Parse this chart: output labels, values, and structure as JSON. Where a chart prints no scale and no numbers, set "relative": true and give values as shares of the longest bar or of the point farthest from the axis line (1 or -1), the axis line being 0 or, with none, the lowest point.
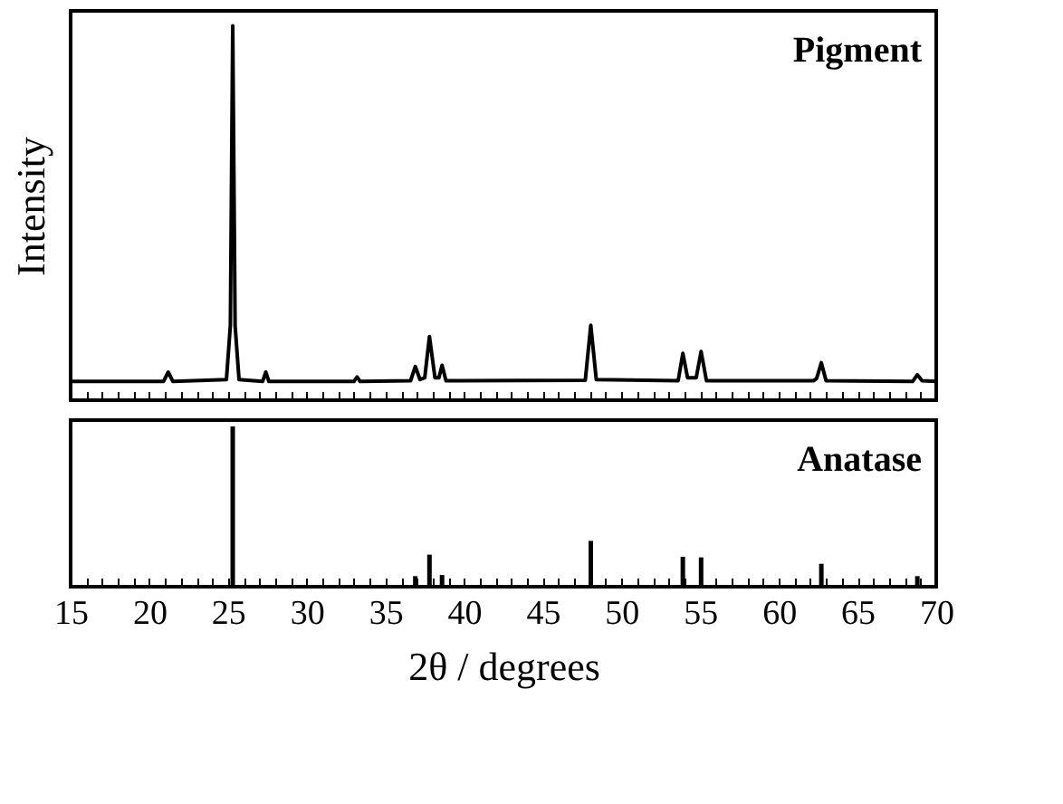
{
  "chart_data": [
    {
      "type": "line",
      "relative": true,
      "ylabel": "Intensity",
      "annotations": [
        "Pigment"
      ],
      "tick_labels": false,
      "grid": false,
      "marker": "none",
      "line_style": "solid",
      "xlim": [
        15,
        70
      ],
      "xticks": [
        {
          "value": 15,
          "label": null
        },
        {
          "value": 16,
          "label": null
        },
        {
          "value": 17,
          "label": null
        },
        {
          "value": 18,
          "label": null
        },
        {
          "value": 19,
          "label": null
        },
        {
          "value": 20,
          "label": null
        },
        {
          "value": 21,
          "label": null
        },
        {
          "value": 22,
          "label": null
        },
        {
          "value": 23,
          "label": null
        },
        {
          "value": 24,
          "label": null
        },
        {
          "value": 25,
          "label": null
        },
        {
          "value": 26,
          "label": null
        },
        {
          "value": 27,
          "label": null
        },
        {
          "value": 28,
          "label": null
        },
        {
          "value": 29,
          "label": null
        },
        {
          "value": 30,
          "label": null
        },
        {
          "value": 31,
          "label": null
        },
        {
          "value": 32,
          "label": null
        },
        {
          "value": 33,
          "label": null
        },
        {
          "value": 34,
          "label": null
        },
        {
          "value": 35,
          "label": null
        },
        {
          "value": 36,
          "label": null
        },
        {
          "value": 37,
          "label": null
        },
        {
          "value": 38,
          "label": null
        },
        {
          "value": 39,
          "label": null
        },
        {
          "value": 40,
          "label": null
        },
        {
          "value": 41,
          "label": null
        },
        {
          "value": 42,
          "label": null
        },
        {
          "value": 43,
          "label": null
        },
        {
          "value": 44,
          "label": null
        },
        {
          "value": 45,
          "label": null
        },
        {
          "value": 46,
          "label": null
        },
        {
          "value": 47,
          "label": null
        },
        {
          "value": 48,
          "label": null
        },
        {
          "value": 49,
          "label": null
        },
        {
          "value": 50,
          "label": null
        },
        {
          "value": 51,
          "label": null
        },
        {
          "value": 52,
          "label": null
        },
        {
          "value": 53,
          "label": null
        },
        {
          "value": 54,
          "label": null
        },
        {
          "value": 55,
          "label": null
        },
        {
          "value": 56,
          "label": null
        },
        {
          "value": 57,
          "label": null
        },
        {
          "value": 58,
          "label": null
        },
        {
          "value": 59,
          "label": null
        },
        {
          "value": 60,
          "label": null
        },
        {
          "value": 61,
          "label": null
        },
        {
          "value": 62,
          "label": null
        },
        {
          "value": 63,
          "label": null
        },
        {
          "value": 64,
          "label": null
        },
        {
          "value": 65,
          "label": null
        },
        {
          "value": 66,
          "label": null
        },
        {
          "value": 67,
          "label": null
        },
        {
          "value": 68,
          "label": null
        },
        {
          "value": 69,
          "label": null
        },
        {
          "value": 70,
          "label": null
        }
      ],
      "series": [
        {
          "color": "#000000",
          "x": [
            15,
            20.9,
            21.2,
            21.5,
            24.9,
            25.15,
            25.3,
            25.45,
            25.7,
            27.2,
            27.4,
            27.6,
            33.0,
            33.2,
            33.4,
            36.6,
            36.9,
            37.2,
            37.5,
            37.8,
            38.15,
            38.4,
            38.6,
            38.85,
            47.7,
            48.05,
            48.4,
            53.6,
            53.9,
            54.2,
            54.75,
            55.06,
            55.4,
            62.2,
            62.4,
            62.7,
            63.0,
            68.5,
            68.8,
            69.1,
            70
          ],
          "values": [
            0.05,
            0.05,
            0.075,
            0.05,
            0.055,
            0.2,
            1.0,
            0.2,
            0.055,
            0.05,
            0.075,
            0.05,
            0.05,
            0.062,
            0.05,
            0.052,
            0.09,
            0.055,
            0.06,
            0.17,
            0.06,
            0.06,
            0.093,
            0.052,
            0.053,
            0.2,
            0.055,
            0.052,
            0.125,
            0.06,
            0.06,
            0.13,
            0.052,
            0.052,
            0.058,
            0.1,
            0.052,
            0.05,
            0.068,
            0.052,
            0.05
          ]
        }
      ]
    },
    {
      "type": "bar",
      "relative": true,
      "xlabel": "2θ / degrees",
      "annotations": [
        "Anatase"
      ],
      "tick_labels": "x",
      "grid": false,
      "xlim": [
        15,
        70
      ],
      "xticks": [
        15,
        {
          "value": 16,
          "label": null
        },
        {
          "value": 17,
          "label": null
        },
        {
          "value": 18,
          "label": null
        },
        {
          "value": 19,
          "label": null
        },
        20,
        {
          "value": 21,
          "label": null
        },
        {
          "value": 22,
          "label": null
        },
        {
          "value": 23,
          "label": null
        },
        {
          "value": 24,
          "label": null
        },
        25,
        {
          "value": 26,
          "label": null
        },
        {
          "value": 27,
          "label": null
        },
        {
          "value": 28,
          "label": null
        },
        {
          "value": 29,
          "label": null
        },
        30,
        {
          "value": 31,
          "label": null
        },
        {
          "value": 32,
          "label": null
        },
        {
          "value": 33,
          "label": null
        },
        {
          "value": 34,
          "label": null
        },
        35,
        {
          "value": 36,
          "label": null
        },
        {
          "value": 37,
          "label": null
        },
        {
          "value": 38,
          "label": null
        },
        {
          "value": 39,
          "label": null
        },
        40,
        {
          "value": 41,
          "label": null
        },
        {
          "value": 42,
          "label": null
        },
        {
          "value": 43,
          "label": null
        },
        {
          "value": 44,
          "label": null
        },
        45,
        {
          "value": 46,
          "label": null
        },
        {
          "value": 47,
          "label": null
        },
        {
          "value": 48,
          "label": null
        },
        {
          "value": 49,
          "label": null
        },
        50,
        {
          "value": 51,
          "label": null
        },
        {
          "value": 52,
          "label": null
        },
        {
          "value": 53,
          "label": null
        },
        {
          "value": 54,
          "label": null
        },
        55,
        {
          "value": 56,
          "label": null
        },
        {
          "value": 57,
          "label": null
        },
        {
          "value": 58,
          "label": null
        },
        {
          "value": 59,
          "label": null
        },
        60,
        {
          "value": 61,
          "label": null
        },
        {
          "value": 62,
          "label": null
        },
        {
          "value": 63,
          "label": null
        },
        {
          "value": 64,
          "label": null
        },
        65,
        {
          "value": 66,
          "label": null
        },
        {
          "value": 67,
          "label": null
        },
        {
          "value": 68,
          "label": null
        },
        {
          "value": 69,
          "label": null
        },
        70
      ],
      "series": [
        {
          "color": "#000000",
          "x": [
            25.3,
            36.9,
            37.8,
            38.6,
            48.05,
            53.9,
            55.06,
            62.7,
            68.8
          ],
          "values": [
            1.0,
            0.066,
            0.2,
            0.073,
            0.286,
            0.187,
            0.183,
            0.143,
            0.066
          ]
        }
      ]
    }
  ]
}
